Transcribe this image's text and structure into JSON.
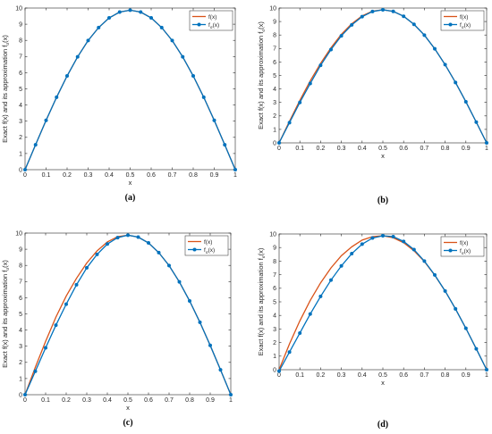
{
  "colors": {
    "exact": "#d95319",
    "approx": "#0072bd",
    "axis": "#262626",
    "background": "#ffffff"
  },
  "chart_data": [
    {
      "panel": "(a)",
      "type": "line",
      "xlabel": "x",
      "ylabel": "Exact f(x) and its approximation f",
      "ylabel_sub": "σ",
      "ylabel_tail": "(x)",
      "xlim": [
        0,
        1
      ],
      "ylim": [
        0,
        10
      ],
      "xticks": [
        "0",
        "0.1",
        "0.2",
        "0.3",
        "0.4",
        "0.5",
        "0.6",
        "0.7",
        "0.8",
        "0.9",
        "1"
      ],
      "yticks": [
        "0",
        "1",
        "2",
        "3",
        "4",
        "5",
        "6",
        "7",
        "8",
        "9",
        "10"
      ],
      "legend": {
        "position": "top-right",
        "exact_label": "f(x)",
        "approx_label": "f",
        "approx_sub": "σ",
        "approx_tail": "(x)"
      },
      "series": [
        {
          "name": "f(x)",
          "x": [
            0,
            0.05,
            0.1,
            0.15,
            0.2,
            0.25,
            0.3,
            0.35,
            0.4,
            0.45,
            0.5,
            0.55,
            0.6,
            0.65,
            0.7,
            0.75,
            0.8,
            0.85,
            0.9,
            0.95,
            1
          ],
          "y": [
            0,
            1.54,
            3.05,
            4.48,
            5.8,
            6.98,
            7.99,
            8.79,
            9.39,
            9.75,
            9.87,
            9.75,
            9.39,
            8.79,
            7.99,
            6.98,
            5.8,
            4.48,
            3.05,
            1.54,
            0
          ]
        },
        {
          "name": "fσ(x)",
          "x": [
            0,
            0.05,
            0.1,
            0.15,
            0.2,
            0.25,
            0.3,
            0.35,
            0.4,
            0.45,
            0.5,
            0.55,
            0.6,
            0.65,
            0.7,
            0.75,
            0.8,
            0.85,
            0.9,
            0.95,
            1
          ],
          "y": [
            0,
            1.54,
            3.05,
            4.48,
            5.8,
            6.98,
            7.99,
            8.79,
            9.39,
            9.75,
            9.87,
            9.75,
            9.39,
            8.79,
            7.99,
            6.98,
            5.8,
            4.48,
            3.05,
            1.54,
            0
          ]
        }
      ]
    },
    {
      "panel": "(b)",
      "type": "line",
      "xlabel": "x",
      "ylabel": "Exact f(x) and its approximation f",
      "ylabel_sub": "σ",
      "ylabel_tail": "(x)",
      "xlim": [
        0,
        1
      ],
      "ylim": [
        0,
        10
      ],
      "xticks": [
        "0",
        "0.1",
        "0.2",
        "0.3",
        "0.4",
        "0.5",
        "0.6",
        "0.7",
        "0.8",
        "0.9",
        "1"
      ],
      "yticks": [
        "0",
        "1",
        "2",
        "3",
        "4",
        "5",
        "6",
        "7",
        "8",
        "9",
        "10"
      ],
      "legend": {
        "position": "top-right",
        "exact_label": "f(x)",
        "approx_label": "f",
        "approx_sub": "σ",
        "approx_tail": "(x)"
      },
      "series": [
        {
          "name": "f(x)",
          "x": [
            0,
            0.05,
            0.1,
            0.15,
            0.2,
            0.25,
            0.3,
            0.35,
            0.4,
            0.45,
            0.5,
            0.55,
            0.6,
            0.65,
            0.7,
            0.75,
            0.8,
            0.85,
            0.9,
            0.95,
            1
          ],
          "y": [
            0,
            1.6,
            3.15,
            4.6,
            5.9,
            7.05,
            8.05,
            8.83,
            9.42,
            9.77,
            9.87,
            9.75,
            9.39,
            8.79,
            7.99,
            6.98,
            5.8,
            4.48,
            3.05,
            1.54,
            0
          ]
        },
        {
          "name": "fσ(x)",
          "x": [
            0,
            0.05,
            0.1,
            0.15,
            0.2,
            0.25,
            0.3,
            0.35,
            0.4,
            0.45,
            0.5,
            0.55,
            0.6,
            0.65,
            0.7,
            0.75,
            0.8,
            0.85,
            0.9,
            0.95,
            1
          ],
          "y": [
            0,
            1.5,
            3.0,
            4.4,
            5.75,
            6.92,
            7.94,
            8.75,
            9.36,
            9.74,
            9.87,
            9.75,
            9.39,
            8.79,
            7.99,
            6.98,
            5.8,
            4.48,
            3.05,
            1.54,
            0
          ]
        }
      ]
    },
    {
      "panel": "(c)",
      "type": "line",
      "xlabel": "x",
      "ylabel": "Exact f(x) and its approximation f",
      "ylabel_sub": "σ",
      "ylabel_tail": "(x)",
      "xlim": [
        0,
        1
      ],
      "ylim": [
        0,
        10
      ],
      "xticks": [
        "0",
        "0.1",
        "0.2",
        "0.3",
        "0.4",
        "0.5",
        "0.6",
        "0.7",
        "0.8",
        "0.9",
        "1"
      ],
      "yticks": [
        "0",
        "1",
        "2",
        "3",
        "4",
        "5",
        "6",
        "7",
        "8",
        "9",
        "10"
      ],
      "legend": {
        "position": "top-right",
        "exact_label": "f(x)",
        "approx_label": "f",
        "approx_sub": "σ",
        "approx_tail": "(x)"
      },
      "series": [
        {
          "name": "f(x)",
          "x": [
            0,
            0.05,
            0.1,
            0.15,
            0.2,
            0.25,
            0.3,
            0.35,
            0.4,
            0.45,
            0.5,
            0.55,
            0.6,
            0.65,
            0.7,
            0.75,
            0.8,
            0.85,
            0.9,
            0.95,
            1
          ],
          "y": [
            0,
            1.7,
            3.3,
            4.8,
            6.1,
            7.2,
            8.15,
            8.9,
            9.45,
            9.78,
            9.87,
            9.75,
            9.39,
            8.79,
            7.99,
            6.98,
            5.8,
            4.48,
            3.05,
            1.54,
            0
          ]
        },
        {
          "name": "fσ(x)",
          "x": [
            0,
            0.05,
            0.1,
            0.15,
            0.2,
            0.25,
            0.3,
            0.35,
            0.4,
            0.45,
            0.5,
            0.55,
            0.6,
            0.65,
            0.7,
            0.75,
            0.8,
            0.85,
            0.9,
            0.95,
            1
          ],
          "y": [
            0,
            1.45,
            2.9,
            4.3,
            5.6,
            6.8,
            7.85,
            8.68,
            9.32,
            9.72,
            9.87,
            9.75,
            9.39,
            8.79,
            7.99,
            6.98,
            5.8,
            4.48,
            3.05,
            1.54,
            0
          ]
        }
      ]
    },
    {
      "panel": "(d)",
      "type": "line",
      "xlabel": "x",
      "ylabel": "Exact f(x) and its approximation f",
      "ylabel_sub": "σ",
      "ylabel_tail": "(x)",
      "xlim": [
        0,
        1
      ],
      "ylim": [
        0,
        10
      ],
      "xticks": [
        "0",
        "0.1",
        "0.2",
        "0.3",
        "0.4",
        "0.5",
        "0.6",
        "0.7",
        "0.8",
        "0.9",
        "1"
      ],
      "yticks": [
        "0",
        "1",
        "2",
        "3",
        "4",
        "5",
        "6",
        "7",
        "8",
        "9",
        "10"
      ],
      "legend": {
        "position": "top-right",
        "exact_label": "f(x)",
        "approx_label": "f",
        "approx_sub": "σ",
        "approx_tail": "(x)"
      },
      "series": [
        {
          "name": "f(x)",
          "x": [
            0,
            0.05,
            0.1,
            0.15,
            0.2,
            0.25,
            0.3,
            0.35,
            0.4,
            0.45,
            0.5,
            0.55,
            0.6,
            0.65,
            0.7,
            0.75,
            0.8,
            0.85,
            0.9,
            0.95,
            1
          ],
          "y": [
            0,
            1.9,
            3.6,
            5.1,
            6.4,
            7.5,
            8.4,
            9.05,
            9.55,
            9.8,
            9.87,
            9.72,
            9.36,
            8.76,
            7.97,
            6.96,
            5.8,
            4.48,
            3.05,
            1.54,
            0
          ]
        },
        {
          "name": "fσ(x)",
          "x": [
            0,
            0.05,
            0.1,
            0.15,
            0.2,
            0.25,
            0.3,
            0.35,
            0.4,
            0.45,
            0.5,
            0.55,
            0.6,
            0.65,
            0.7,
            0.75,
            0.8,
            0.85,
            0.9,
            0.95,
            1
          ],
          "y": [
            -0.1,
            1.3,
            2.7,
            4.1,
            5.4,
            6.6,
            7.65,
            8.55,
            9.25,
            9.7,
            9.87,
            9.8,
            9.45,
            8.85,
            8.0,
            6.98,
            5.8,
            4.48,
            3.05,
            1.54,
            0
          ]
        }
      ]
    }
  ]
}
